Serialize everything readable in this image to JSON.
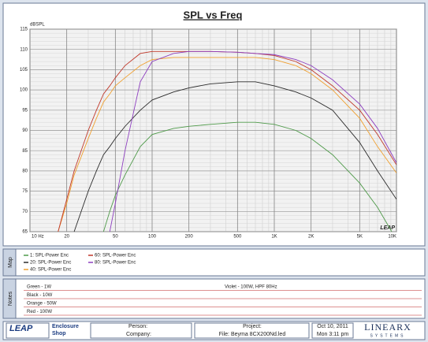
{
  "chart_data": {
    "type": "line",
    "title": "SPL vs Freq",
    "y_label": "dBSPL",
    "watermark": "LEAP",
    "log_x": true,
    "grid": true,
    "x": [
      17,
      20,
      23,
      30,
      35,
      40,
      45,
      50,
      60,
      80,
      100,
      150,
      200,
      300,
      500,
      700,
      1000,
      1500,
      2000,
      3000,
      5000,
      7000,
      10000
    ],
    "xlim": [
      10,
      10000
    ],
    "xticks": [
      {
        "value": 10,
        "label": "10 Hz"
      },
      20,
      50,
      100,
      200,
      500,
      {
        "value": 1000,
        "label": "1K"
      },
      {
        "value": 2000,
        "label": "2K"
      },
      {
        "value": 5000,
        "label": "5K"
      },
      {
        "value": 10000,
        "label": "10K"
      }
    ],
    "ylim": [
      65,
      115
    ],
    "yticks": [
      65,
      70,
      75,
      80,
      85,
      90,
      95,
      100,
      105,
      110,
      115
    ],
    "series": [
      {
        "name": "1: SPL-Power Enc",
        "color": "#4f9a4a",
        "values": [
          null,
          null,
          null,
          null,
          null,
          65,
          70,
          74,
          79,
          86,
          89,
          90.5,
          91,
          91.5,
          92,
          92,
          91.5,
          90,
          88,
          84,
          77,
          71,
          63
        ]
      },
      {
        "name": "20: SPL-Power Enc",
        "color": "#2b2b2b",
        "values": [
          null,
          null,
          65,
          75,
          80,
          84,
          86,
          88,
          91,
          95,
          97.5,
          99.5,
          100.5,
          101.5,
          102,
          102,
          101,
          99.5,
          98,
          95,
          87,
          80,
          73
        ]
      },
      {
        "name": "40: SPL-Power Enc",
        "color": "#f0a030",
        "values": [
          65,
          72,
          79,
          88,
          93,
          97,
          99,
          101,
          103,
          106,
          107.5,
          108,
          108,
          108,
          108,
          108,
          107.5,
          106,
          104,
          100,
          93,
          86,
          79.5
        ]
      },
      {
        "name": "60: SPL-Power Enc",
        "color": "#c0392b",
        "values": [
          65,
          73,
          80,
          90,
          95,
          99,
          101,
          103,
          106,
          109,
          109.5,
          109.5,
          109.5,
          109.5,
          109.3,
          109,
          108.5,
          107,
          105,
          101,
          95,
          89,
          81.5
        ]
      },
      {
        "name": "80: SPL-Power Enc",
        "color": "#8e3fc0",
        "values": [
          null,
          null,
          null,
          null,
          null,
          null,
          65,
          72,
          85,
          102,
          107,
          109,
          109.5,
          109.5,
          109.3,
          109,
          108.7,
          107.5,
          106,
          102.5,
          96.5,
          90.5,
          82
        ]
      }
    ]
  },
  "map_panel": {
    "label": "Map"
  },
  "notes_panel": {
    "label": "Notes",
    "left_lines": [
      "Green - 1W",
      "Black - 10W",
      "Orange - 50W",
      "Red - 100W"
    ],
    "right_lines": [
      "Violet - 100W, HPF 80Hz"
    ]
  },
  "footer": {
    "logo": "LEAP",
    "product": [
      "Enclosure",
      "Shop"
    ],
    "person": "Person:",
    "company": "Company:",
    "project": "Project:",
    "file": "File: Beyma 8CX200Nd.led",
    "date": "Oct 10, 2011",
    "time": "Mon  3:11 pm",
    "brand": "LINEARX",
    "brand_sub": "SYSTEMS"
  }
}
